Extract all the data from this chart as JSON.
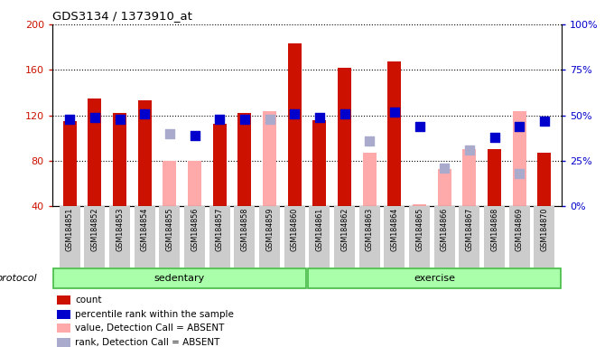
{
  "title": "GDS3134 / 1373910_at",
  "samples": [
    "GSM184851",
    "GSM184852",
    "GSM184853",
    "GSM184854",
    "GSM184855",
    "GSM184856",
    "GSM184857",
    "GSM184858",
    "GSM184859",
    "GSM184860",
    "GSM184861",
    "GSM184862",
    "GSM184863",
    "GSM184864",
    "GSM184865",
    "GSM184866",
    "GSM184867",
    "GSM184868",
    "GSM184869",
    "GSM184870"
  ],
  "red_bars": [
    115,
    135,
    122,
    133,
    null,
    null,
    113,
    122,
    null,
    183,
    116,
    162,
    null,
    167,
    null,
    null,
    null,
    90,
    null,
    87
  ],
  "pink_bars": [
    null,
    null,
    null,
    null,
    80,
    80,
    null,
    null,
    124,
    null,
    null,
    null,
    87,
    null,
    42,
    73,
    90,
    null,
    124,
    null
  ],
  "blue_squares_pct": [
    48,
    49,
    48,
    51,
    null,
    39,
    48,
    48,
    null,
    51,
    49,
    51,
    null,
    52,
    44,
    null,
    null,
    38,
    44,
    47
  ],
  "light_blue_pct": [
    null,
    null,
    null,
    null,
    40,
    null,
    null,
    null,
    48,
    null,
    null,
    null,
    36,
    null,
    null,
    21,
    31,
    null,
    18,
    null
  ],
  "groups": [
    {
      "label": "sedentary",
      "start": 0,
      "end": 9
    },
    {
      "label": "exercise",
      "start": 10,
      "end": 19
    }
  ],
  "ylim": [
    40,
    200
  ],
  "y2lim": [
    0,
    100
  ],
  "yticks": [
    40,
    80,
    120,
    160,
    200
  ],
  "y2ticks_vals": [
    0,
    25,
    50,
    75,
    100
  ],
  "y2ticks_labels": [
    "0%",
    "25%",
    "50%",
    "75%",
    "100%"
  ],
  "red_color": "#cc1100",
  "pink_color": "#ffaaaa",
  "blue_color": "#0000cc",
  "light_blue_color": "#aaaacc",
  "bar_width": 0.55,
  "square_size": 45,
  "legend_items": [
    "count",
    "percentile rank within the sample",
    "value, Detection Call = ABSENT",
    "rank, Detection Call = ABSENT"
  ],
  "legend_colors": [
    "#cc1100",
    "#0000cc",
    "#ffaaaa",
    "#aaaacc"
  ]
}
